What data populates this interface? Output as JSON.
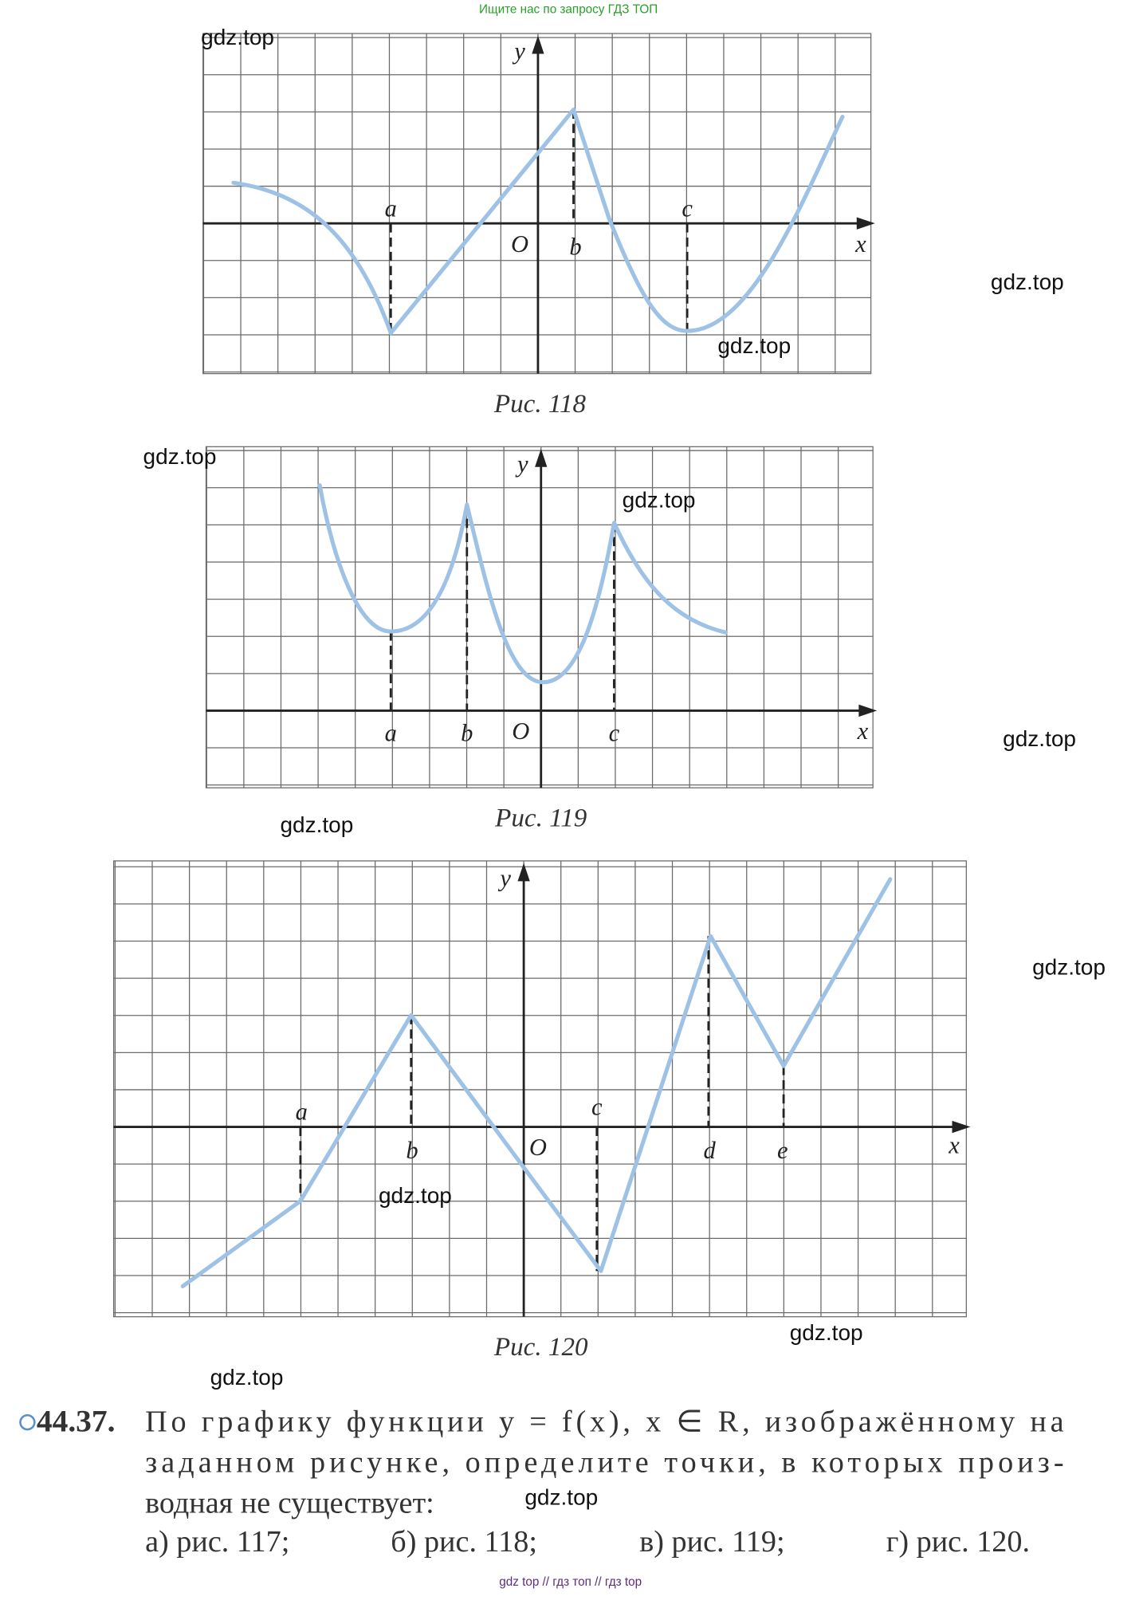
{
  "header": {
    "search_hint": "Ищите нас по запросу ГДЗ ТОП"
  },
  "watermarks": [
    "gdz.top",
    "gdz.top",
    "gdz.top",
    "gdz.top",
    "gdz.top",
    "gdz.top",
    "gdz.top",
    "gdz.top",
    "gdz.top",
    "gdz.top",
    "gdz.top",
    "gdz.top"
  ],
  "figures": [
    {
      "caption": "Рис. 118",
      "axis_x": "x",
      "axis_y": "y",
      "origin": "O",
      "points": [
        "a",
        "b",
        "c"
      ]
    },
    {
      "caption": "Рис. 119",
      "axis_x": "x",
      "axis_y": "y",
      "origin": "O",
      "points": [
        "a",
        "b",
        "c"
      ]
    },
    {
      "caption": "Рис. 120",
      "axis_x": "x",
      "axis_y": "y",
      "origin": "O",
      "points": [
        "a",
        "b",
        "c",
        "d",
        "e"
      ]
    }
  ],
  "problem": {
    "number": "44.37.",
    "lines": [
      "По графику функции y = f(x), x ∈ R, изображённому на",
      "заданном рисунке, определите точки, в которых произ-",
      "водная не существует:"
    ],
    "options": [
      "а) рис. 117;",
      "б) рис. 118;",
      "в) рис. 119;",
      "г) рис. 120."
    ]
  },
  "footer": {
    "links": "gdz top // гдз топ // гдз top"
  }
}
